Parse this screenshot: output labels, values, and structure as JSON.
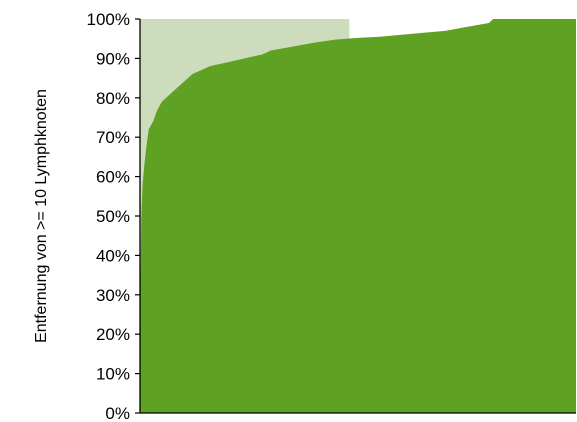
{
  "chart_data": {
    "type": "area",
    "title": "",
    "xlabel": "",
    "ylabel": "Entfernung von >= 10 Lymphknoten",
    "ylim": [
      0,
      100
    ],
    "y_ticks": [
      "0%",
      "10%",
      "20%",
      "30%",
      "40%",
      "50%",
      "60%",
      "70%",
      "80%",
      "90%",
      "100%"
    ],
    "grid": false,
    "legend": "none",
    "colors": {
      "main": "#5fa123",
      "band": "#cddcbd"
    },
    "band": {
      "x_start": 0,
      "x_end": 48,
      "value": 100
    },
    "series": [
      {
        "x": [
          0,
          0.3,
          0.6,
          1,
          1.5,
          2,
          3,
          4,
          5,
          6,
          8,
          10,
          12,
          14,
          16,
          18,
          20,
          22,
          24,
          26,
          28,
          30,
          35,
          40,
          45,
          50,
          55,
          60,
          65,
          70,
          75,
          80,
          81,
          82,
          85,
          90,
          95,
          100
        ],
        "values": [
          25,
          50,
          58,
          63,
          68,
          72,
          74,
          77,
          79,
          80,
          82,
          84,
          86,
          87,
          88,
          88.5,
          89,
          89.5,
          90,
          90.5,
          91,
          92,
          93,
          94,
          94.8,
          95.2,
          95.5,
          96,
          96.5,
          97,
          98,
          99,
          100,
          100,
          100,
          100,
          100,
          100
        ]
      }
    ]
  }
}
